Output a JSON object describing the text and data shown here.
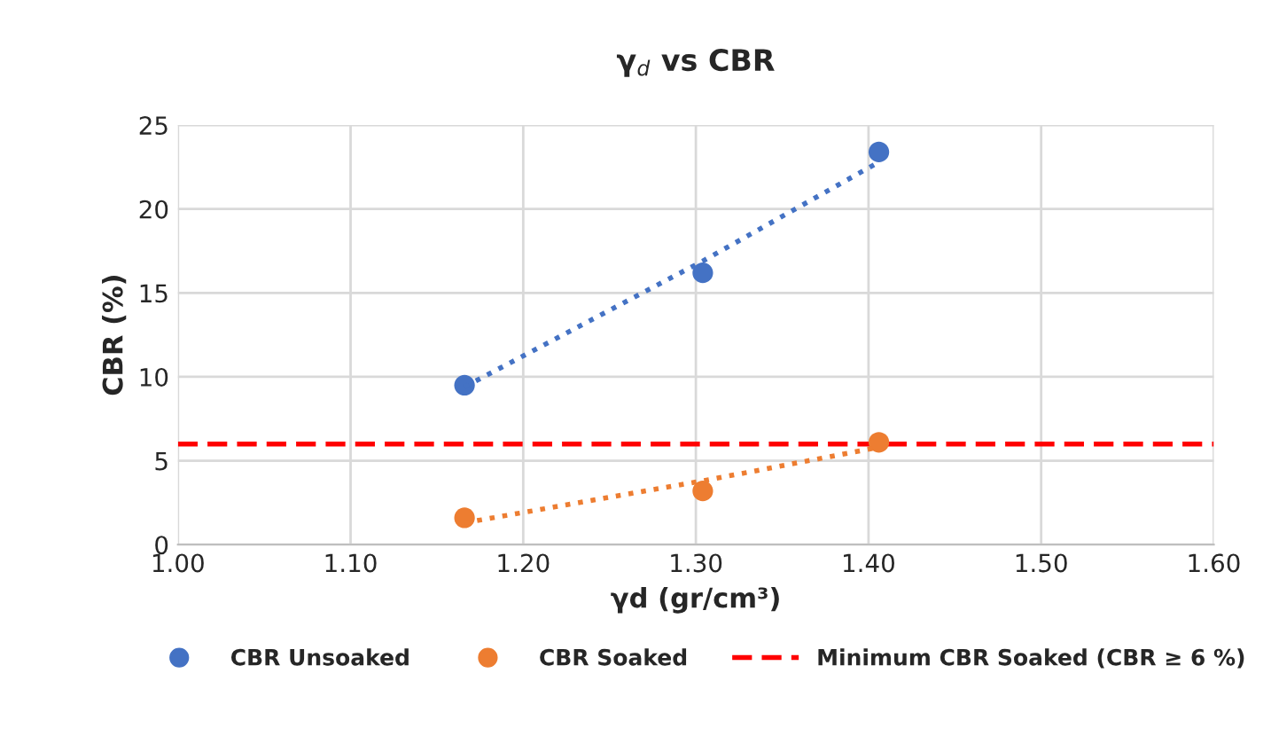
{
  "chart_data": {
    "type": "scatter",
    "title": "γ$_{d}$ vs CBR",
    "xlabel": "γd (gr/cm³)",
    "ylabel": "CBR (%)",
    "x": [
      1.166,
      1.304,
      1.406
    ],
    "series": [
      {
        "name": "CBR Unsoaked",
        "color": "#4472c4",
        "values": [
          9.5,
          16.2,
          23.4
        ]
      },
      {
        "name": "CBR Soaked",
        "color": "#ed7d31",
        "values": [
          1.6,
          3.2,
          6.1
        ]
      },
      {
        "type": "line",
        "color": "#4472c4",
        "line_style": "dotted",
        "marker": "none",
        "values": [
          9.4,
          16.9,
          22.8
        ]
      },
      {
        "type": "line",
        "color": "#ed7d31",
        "line_style": "dotted",
        "marker": "none",
        "values": [
          1.3,
          3.8,
          5.8
        ]
      }
    ],
    "ref_lines": [
      {
        "axis": "y",
        "value": 6,
        "label": "Minimum CBR Soaked (CBR ≥ 6 %)",
        "color": "#ff0000",
        "line_style": "dashed"
      }
    ],
    "xlim": [
      1.0,
      1.6
    ],
    "xticks": [
      {
        "value": 1.0,
        "label": "1.00"
      },
      {
        "value": 1.1,
        "label": "1.10"
      },
      {
        "value": 1.2,
        "label": "1.20"
      },
      {
        "value": 1.3,
        "label": "1.30"
      },
      {
        "value": 1.4,
        "label": "1.40"
      },
      {
        "value": 1.5,
        "label": "1.50"
      },
      {
        "value": 1.6,
        "label": "1.60"
      }
    ],
    "ylim": [
      0,
      25
    ],
    "yticks": [
      0,
      5,
      10,
      15,
      20,
      25
    ],
    "grid": true,
    "legend": "bottom",
    "marker": "circle"
  }
}
